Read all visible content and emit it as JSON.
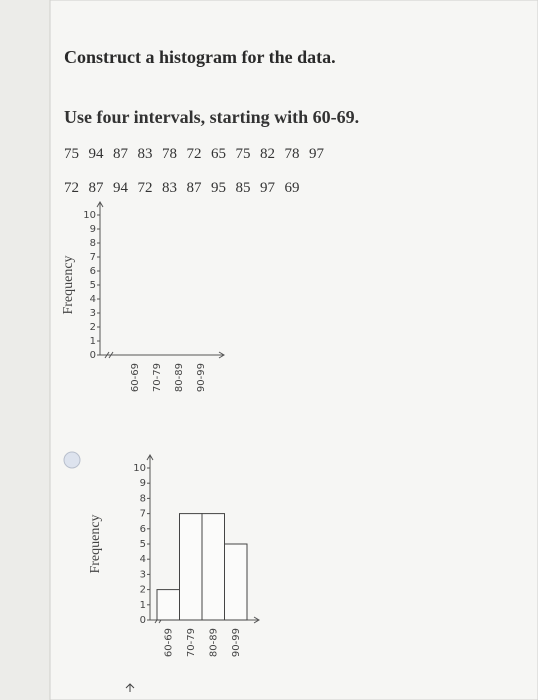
{
  "question": {
    "title": "Construct a histogram for the data.",
    "instruction": "Use four intervals, starting with 60-69.",
    "data": [
      [
        75,
        94,
        87,
        83,
        78,
        72,
        65,
        75,
        82,
        78,
        97
      ],
      [
        72,
        87,
        94,
        72,
        83,
        87,
        95,
        85,
        97,
        69
      ]
    ]
  },
  "chart_data": [
    {
      "type": "empty",
      "ylabel": "Frequency",
      "categories": [
        "60-69",
        "70-79",
        "80-89",
        "90-99"
      ],
      "ylim": [
        0,
        10
      ],
      "yticks": [
        0,
        1,
        2,
        3,
        4,
        5,
        6,
        7,
        8,
        9,
        10
      ]
    },
    {
      "type": "bar",
      "ylabel": "Frequency",
      "categories": [
        "60-69",
        "70-79",
        "80-89",
        "90-99"
      ],
      "values": [
        2,
        7,
        7,
        5
      ],
      "ylim": [
        0,
        10
      ],
      "yticks": [
        0,
        1,
        2,
        3,
        4,
        5,
        6,
        7,
        8,
        9,
        10
      ]
    }
  ]
}
